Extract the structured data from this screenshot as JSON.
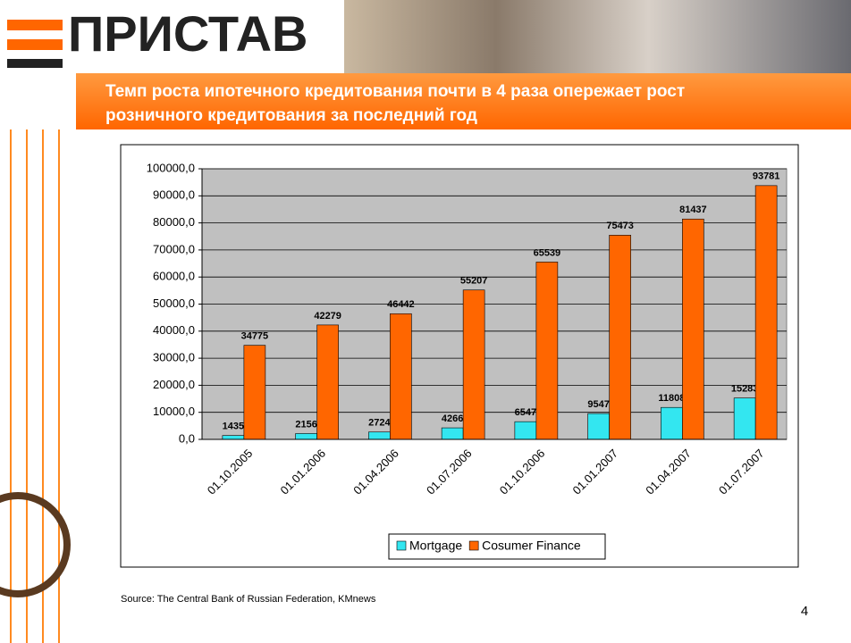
{
  "header": {
    "logo": "ПРИСТАВ",
    "title": [
      "Темп роста ипотечного кредитования почти в 4 раза опережает рост",
      "розничного кредитования за последний год"
    ]
  },
  "chart_data": {
    "type": "bar",
    "categories": [
      "01.10.2005",
      "01.01.2006",
      "01.04.2006",
      "01.07.2006",
      "01.10.2006",
      "01.01.2007",
      "01.04.2007",
      "01.07.2007"
    ],
    "series": [
      {
        "name": "Mortgage",
        "color": "#33e6f0",
        "values": [
          1435,
          2156,
          2724,
          4266,
          6547,
          9547,
          11808,
          15283
        ]
      },
      {
        "name": "Cosumer Finance",
        "color": "#ff6600",
        "values": [
          34775,
          42279,
          46442,
          55207,
          65539,
          75473,
          81437,
          93781
        ]
      }
    ],
    "ylim": [
      0,
      100000
    ],
    "yticks": [
      {
        "value": 0,
        "label": "0,0"
      },
      {
        "value": 10000,
        "label": "10000,0"
      },
      {
        "value": 20000,
        "label": "20000,0"
      },
      {
        "value": 30000,
        "label": "30000,0"
      },
      {
        "value": 40000,
        "label": "40000,0"
      },
      {
        "value": 50000,
        "label": "50000,0"
      },
      {
        "value": 60000,
        "label": "60000,0"
      },
      {
        "value": 70000,
        "label": "70000,0"
      },
      {
        "value": 80000,
        "label": "80000,0"
      },
      {
        "value": 90000,
        "label": "90000,0"
      },
      {
        "value": 100000,
        "label": "100000,0"
      }
    ],
    "grid": true,
    "legend": "bottom"
  },
  "footer": {
    "source": "Source: The Central Bank of Russian Federation, KMnews",
    "page": "4"
  }
}
